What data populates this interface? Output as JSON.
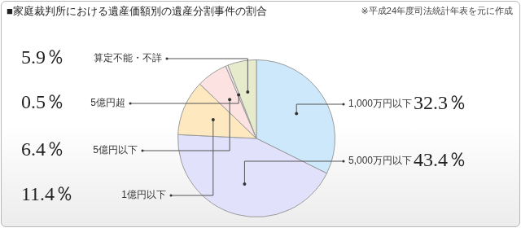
{
  "chart_data": {
    "type": "pie",
    "title": "■家庭裁判所における遺産価額別の遺産分割事件の割合",
    "subtitle": "※平成24年度司法統計年表を元に作成",
    "categories": [
      "1,000万円以下",
      "5,000万円以下",
      "1億円以下",
      "5億円以下",
      "5億円超",
      "算定不能・不詳"
    ],
    "values": [
      32.3,
      43.4,
      11.4,
      6.4,
      0.5,
      5.9
    ],
    "value_labels": [
      "32.3％",
      "43.4％",
      "11.4％",
      "6.4％",
      "0.5％",
      "5.9％"
    ],
    "colors": [
      "#cde8fb",
      "#e1e1fb",
      "#fde8c0",
      "#fde2e2",
      "#f6e8f0",
      "#e6ebcb"
    ],
    "data_labels": true
  }
}
